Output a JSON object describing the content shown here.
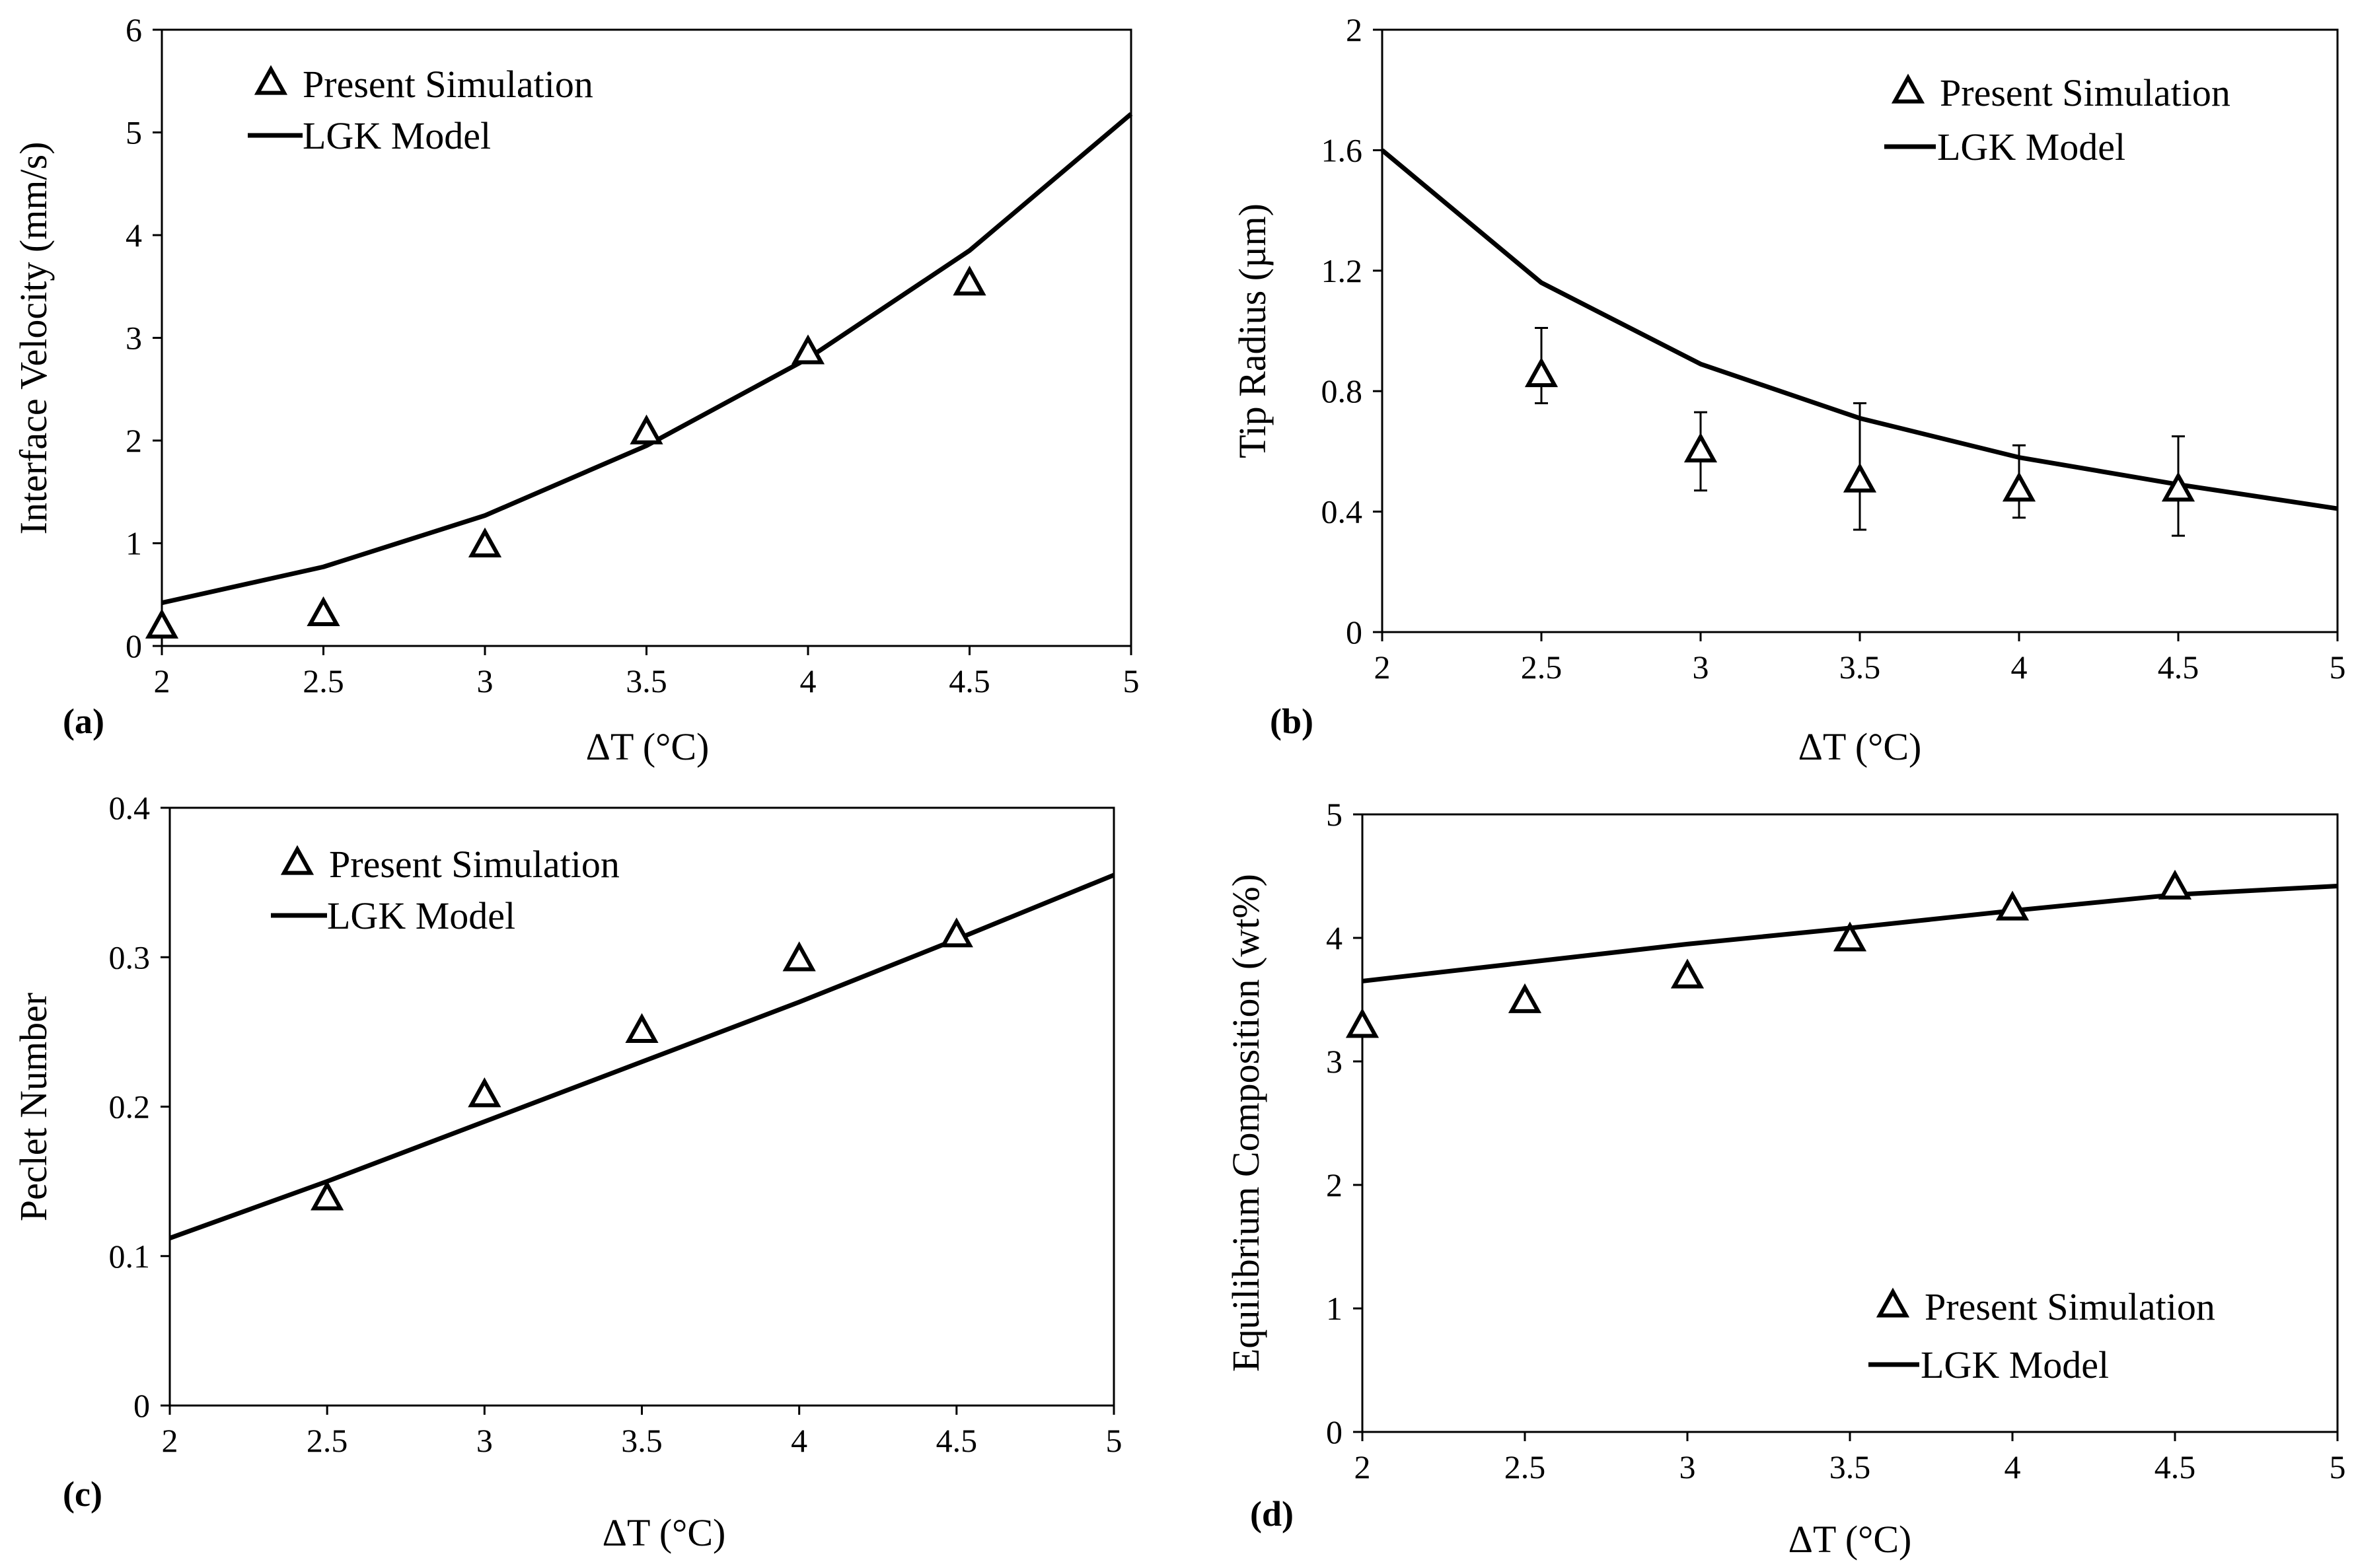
{
  "chart_data": [
    {
      "panel_label": "(a)",
      "type": "line+scatter",
      "xlabel": "ΔT (°C)",
      "ylabel": "Interface Velocity (mm/s)",
      "xlim": [
        2,
        5
      ],
      "ylim": [
        0,
        6
      ],
      "x_ticks": [
        "2",
        "2.5",
        "3",
        "3.5",
        "4",
        "4.5",
        "5"
      ],
      "y_ticks": [
        "0",
        "1",
        "2",
        "3",
        "4",
        "5",
        "6"
      ],
      "legend": {
        "position": "top-left",
        "scatter_label": "Present Simulation",
        "line_label": "LGK Model"
      },
      "scatter": {
        "name": "Present Simulation",
        "x": [
          2,
          2.5,
          3,
          3.5,
          4,
          4.5
        ],
        "y": [
          0.18,
          0.3,
          0.97,
          2.07,
          2.85,
          3.52
        ]
      },
      "line": {
        "name": "LGK Model",
        "x": [
          2,
          2.5,
          3,
          3.5,
          4,
          4.5,
          5
        ],
        "y": [
          0.42,
          0.77,
          1.27,
          1.95,
          2.8,
          3.85,
          5.18
        ]
      }
    },
    {
      "panel_label": "(b)",
      "type": "line+scatter",
      "xlabel": "ΔT (°C)",
      "ylabel": "Tip Radius (µm)",
      "xlim": [
        2,
        5
      ],
      "ylim": [
        0,
        2
      ],
      "x_ticks": [
        "2",
        "2.5",
        "3",
        "3.5",
        "4",
        "4.5",
        "5"
      ],
      "y_ticks": [
        "0",
        "0.4",
        "0.8",
        "1.2",
        "1.6",
        "2"
      ],
      "legend": {
        "position": "top-right",
        "scatter_label": "Present Simulation",
        "line_label": "LGK Model"
      },
      "scatter": {
        "name": "Present Simulation",
        "x": [
          2.5,
          3,
          3.5,
          4,
          4.5
        ],
        "y": [
          0.85,
          0.6,
          0.5,
          0.47,
          0.47
        ],
        "err_low": [
          0.76,
          0.47,
          0.34,
          0.38,
          0.32
        ],
        "err_high": [
          1.01,
          0.73,
          0.76,
          0.62,
          0.65
        ]
      },
      "line": {
        "name": "LGK Model",
        "x": [
          2,
          2.5,
          3,
          3.5,
          4,
          4.5,
          5
        ],
        "y": [
          1.6,
          1.16,
          0.89,
          0.71,
          0.58,
          0.49,
          0.41
        ]
      }
    },
    {
      "panel_label": "(c)",
      "type": "line+scatter",
      "xlabel": "ΔT (°C)",
      "ylabel": "Peclet Number",
      "xlim": [
        2,
        5
      ],
      "ylim": [
        0,
        0.4
      ],
      "x_ticks": [
        "2",
        "2.5",
        "3",
        "3.5",
        "4",
        "4.5",
        "5"
      ],
      "y_ticks": [
        "0",
        "0.1",
        "0.2",
        "0.3",
        "0.4"
      ],
      "legend": {
        "position": "top-left",
        "scatter_label": "Present Simulation",
        "line_label": "LGK Model"
      },
      "scatter": {
        "name": "Present Simulation",
        "x": [
          2.5,
          3,
          3.5,
          4,
          4.5
        ],
        "y": [
          0.138,
          0.207,
          0.25,
          0.298,
          0.314
        ]
      },
      "line": {
        "name": "LGK Model",
        "x": [
          2,
          2.5,
          3,
          3.5,
          4,
          4.5,
          5
        ],
        "y": [
          0.112,
          0.15,
          0.19,
          0.23,
          0.27,
          0.312,
          0.355
        ]
      }
    },
    {
      "panel_label": "(d)",
      "type": "line+scatter",
      "xlabel": "ΔT (°C)",
      "ylabel": "Equilibrium Composition (wt%)",
      "xlim": [
        2,
        5
      ],
      "ylim": [
        0,
        5
      ],
      "x_ticks": [
        "2",
        "2.5",
        "3",
        "3.5",
        "4",
        "4.5",
        "5"
      ],
      "y_ticks": [
        "0",
        "1",
        "2",
        "3",
        "4",
        "5"
      ],
      "legend": {
        "position": "bottom-right",
        "scatter_label": "Present Simulation",
        "line_label": "LGK Model"
      },
      "scatter": {
        "name": "Present Simulation",
        "x": [
          2,
          2.5,
          3,
          3.5,
          4,
          4.5
        ],
        "y": [
          3.28,
          3.48,
          3.68,
          3.98,
          4.23,
          4.4
        ]
      },
      "line": {
        "name": "LGK Model",
        "x": [
          2,
          2.5,
          3,
          3.5,
          4,
          4.5,
          5
        ],
        "y": [
          3.65,
          3.8,
          3.95,
          4.08,
          4.22,
          4.35,
          4.42
        ]
      }
    }
  ]
}
